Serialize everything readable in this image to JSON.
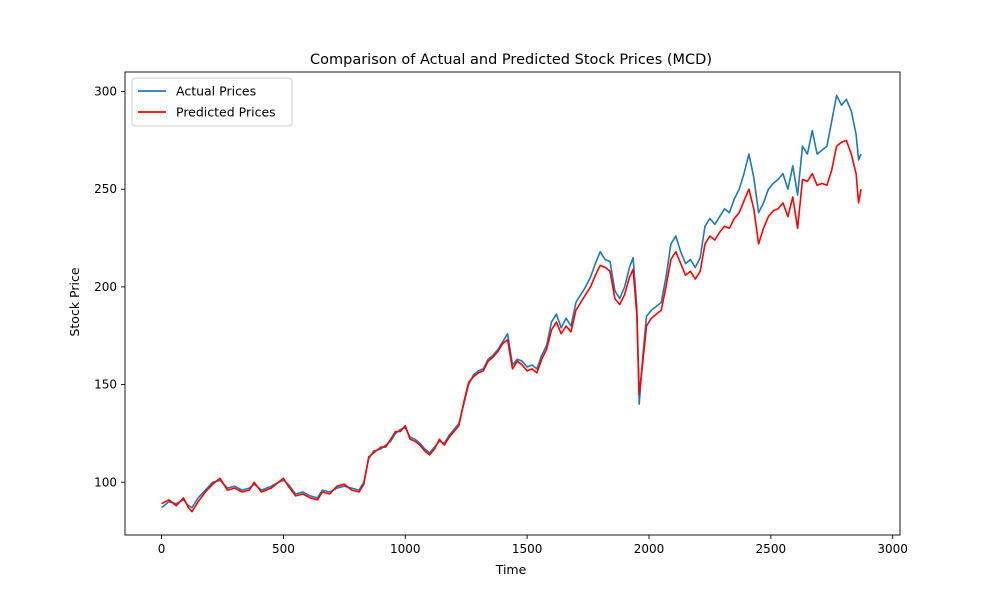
{
  "chart_data": {
    "type": "line",
    "title": "Comparison of Actual and Predicted Stock Prices (MCD)",
    "xlabel": "Time",
    "ylabel": "Stock Price",
    "xlim": [
      -150,
      3030
    ],
    "ylim": [
      73,
      310
    ],
    "xticks": [
      0,
      500,
      1000,
      1500,
      2000,
      2500,
      3000
    ],
    "yticks": [
      100,
      150,
      200,
      250,
      300
    ],
    "grid": false,
    "legend_position": "top-left",
    "series": [
      {
        "name": "Actual Prices",
        "color": "#1f77b4",
        "points": [
          [
            0,
            87
          ],
          [
            30,
            90
          ],
          [
            60,
            89
          ],
          [
            90,
            91
          ],
          [
            110,
            88
          ],
          [
            125,
            87
          ],
          [
            150,
            92
          ],
          [
            180,
            96
          ],
          [
            210,
            100
          ],
          [
            240,
            101
          ],
          [
            270,
            97
          ],
          [
            300,
            98
          ],
          [
            330,
            96
          ],
          [
            360,
            97
          ],
          [
            380,
            99
          ],
          [
            410,
            96
          ],
          [
            450,
            98
          ],
          [
            480,
            100
          ],
          [
            500,
            101
          ],
          [
            520,
            99
          ],
          [
            550,
            94
          ],
          [
            580,
            95
          ],
          [
            610,
            93
          ],
          [
            640,
            92
          ],
          [
            660,
            96
          ],
          [
            690,
            95
          ],
          [
            720,
            97
          ],
          [
            750,
            98
          ],
          [
            780,
            97
          ],
          [
            810,
            96
          ],
          [
            830,
            100
          ],
          [
            850,
            112
          ],
          [
            870,
            116
          ],
          [
            900,
            117
          ],
          [
            920,
            119
          ],
          [
            940,
            121
          ],
          [
            960,
            125
          ],
          [
            980,
            127
          ],
          [
            1000,
            128
          ],
          [
            1020,
            123
          ],
          [
            1040,
            122
          ],
          [
            1060,
            120
          ],
          [
            1080,
            117
          ],
          [
            1100,
            115
          ],
          [
            1120,
            118
          ],
          [
            1140,
            121
          ],
          [
            1160,
            120
          ],
          [
            1180,
            124
          ],
          [
            1200,
            127
          ],
          [
            1220,
            130
          ],
          [
            1240,
            140
          ],
          [
            1260,
            150
          ],
          [
            1280,
            155
          ],
          [
            1300,
            157
          ],
          [
            1320,
            158
          ],
          [
            1340,
            163
          ],
          [
            1360,
            165
          ],
          [
            1380,
            168
          ],
          [
            1400,
            172
          ],
          [
            1420,
            176
          ],
          [
            1440,
            160
          ],
          [
            1460,
            163
          ],
          [
            1480,
            162
          ],
          [
            1500,
            159
          ],
          [
            1520,
            160
          ],
          [
            1540,
            158
          ],
          [
            1560,
            165
          ],
          [
            1580,
            170
          ],
          [
            1600,
            182
          ],
          [
            1620,
            186
          ],
          [
            1640,
            179
          ],
          [
            1660,
            184
          ],
          [
            1680,
            180
          ],
          [
            1700,
            192
          ],
          [
            1720,
            196
          ],
          [
            1740,
            200
          ],
          [
            1760,
            205
          ],
          [
            1780,
            212
          ],
          [
            1800,
            218
          ],
          [
            1820,
            214
          ],
          [
            1840,
            213
          ],
          [
            1860,
            198
          ],
          [
            1880,
            194
          ],
          [
            1900,
            200
          ],
          [
            1920,
            210
          ],
          [
            1935,
            215
          ],
          [
            1950,
            190
          ],
          [
            1960,
            140
          ],
          [
            1975,
            165
          ],
          [
            1990,
            185
          ],
          [
            2010,
            188
          ],
          [
            2030,
            190
          ],
          [
            2050,
            192
          ],
          [
            2070,
            205
          ],
          [
            2090,
            222
          ],
          [
            2110,
            226
          ],
          [
            2130,
            218
          ],
          [
            2150,
            212
          ],
          [
            2170,
            214
          ],
          [
            2190,
            210
          ],
          [
            2210,
            215
          ],
          [
            2230,
            231
          ],
          [
            2250,
            235
          ],
          [
            2270,
            232
          ],
          [
            2290,
            236
          ],
          [
            2310,
            240
          ],
          [
            2330,
            238
          ],
          [
            2350,
            245
          ],
          [
            2370,
            250
          ],
          [
            2390,
            258
          ],
          [
            2410,
            268
          ],
          [
            2430,
            256
          ],
          [
            2450,
            238
          ],
          [
            2470,
            243
          ],
          [
            2490,
            250
          ],
          [
            2510,
            253
          ],
          [
            2530,
            255
          ],
          [
            2550,
            258
          ],
          [
            2570,
            250
          ],
          [
            2590,
            262
          ],
          [
            2610,
            247
          ],
          [
            2630,
            272
          ],
          [
            2650,
            268
          ],
          [
            2670,
            280
          ],
          [
            2690,
            268
          ],
          [
            2710,
            270
          ],
          [
            2730,
            272
          ],
          [
            2750,
            285
          ],
          [
            2770,
            298
          ],
          [
            2790,
            293
          ],
          [
            2810,
            296
          ],
          [
            2830,
            290
          ],
          [
            2850,
            278
          ],
          [
            2860,
            265
          ],
          [
            2870,
            268
          ]
        ]
      },
      {
        "name": "Predicted Prices",
        "color": "#ff0000",
        "points": [
          [
            0,
            89
          ],
          [
            30,
            91
          ],
          [
            60,
            88
          ],
          [
            90,
            92
          ],
          [
            110,
            87
          ],
          [
            125,
            85
          ],
          [
            150,
            90
          ],
          [
            180,
            95
          ],
          [
            210,
            99
          ],
          [
            240,
            102
          ],
          [
            270,
            96
          ],
          [
            300,
            97
          ],
          [
            330,
            95
          ],
          [
            360,
            96
          ],
          [
            380,
            100
          ],
          [
            410,
            95
          ],
          [
            450,
            97
          ],
          [
            480,
            100
          ],
          [
            500,
            102
          ],
          [
            520,
            98
          ],
          [
            550,
            93
          ],
          [
            580,
            94
          ],
          [
            610,
            92
          ],
          [
            640,
            91
          ],
          [
            660,
            95
          ],
          [
            690,
            94
          ],
          [
            720,
            98
          ],
          [
            750,
            99
          ],
          [
            780,
            96
          ],
          [
            810,
            95
          ],
          [
            830,
            99
          ],
          [
            850,
            113
          ],
          [
            870,
            115
          ],
          [
            900,
            118
          ],
          [
            920,
            118
          ],
          [
            940,
            122
          ],
          [
            960,
            126
          ],
          [
            980,
            126
          ],
          [
            1000,
            129
          ],
          [
            1020,
            122
          ],
          [
            1040,
            121
          ],
          [
            1060,
            119
          ],
          [
            1080,
            116
          ],
          [
            1100,
            114
          ],
          [
            1120,
            117
          ],
          [
            1140,
            122
          ],
          [
            1160,
            119
          ],
          [
            1180,
            123
          ],
          [
            1200,
            126
          ],
          [
            1220,
            129
          ],
          [
            1240,
            141
          ],
          [
            1260,
            151
          ],
          [
            1280,
            154
          ],
          [
            1300,
            156
          ],
          [
            1320,
            157
          ],
          [
            1340,
            162
          ],
          [
            1360,
            164
          ],
          [
            1380,
            167
          ],
          [
            1400,
            171
          ],
          [
            1420,
            173
          ],
          [
            1440,
            158
          ],
          [
            1460,
            162
          ],
          [
            1480,
            160
          ],
          [
            1500,
            157
          ],
          [
            1520,
            158
          ],
          [
            1540,
            156
          ],
          [
            1560,
            163
          ],
          [
            1580,
            168
          ],
          [
            1600,
            178
          ],
          [
            1620,
            182
          ],
          [
            1640,
            176
          ],
          [
            1660,
            180
          ],
          [
            1680,
            177
          ],
          [
            1700,
            188
          ],
          [
            1720,
            192
          ],
          [
            1740,
            196
          ],
          [
            1760,
            200
          ],
          [
            1780,
            206
          ],
          [
            1800,
            211
          ],
          [
            1820,
            210
          ],
          [
            1840,
            208
          ],
          [
            1860,
            194
          ],
          [
            1880,
            191
          ],
          [
            1900,
            196
          ],
          [
            1920,
            205
          ],
          [
            1935,
            209
          ],
          [
            1950,
            186
          ],
          [
            1960,
            145
          ],
          [
            1975,
            162
          ],
          [
            1990,
            180
          ],
          [
            2010,
            184
          ],
          [
            2030,
            186
          ],
          [
            2050,
            188
          ],
          [
            2070,
            200
          ],
          [
            2090,
            214
          ],
          [
            2110,
            218
          ],
          [
            2130,
            212
          ],
          [
            2150,
            206
          ],
          [
            2170,
            208
          ],
          [
            2190,
            204
          ],
          [
            2210,
            208
          ],
          [
            2230,
            222
          ],
          [
            2250,
            226
          ],
          [
            2270,
            224
          ],
          [
            2290,
            228
          ],
          [
            2310,
            231
          ],
          [
            2330,
            230
          ],
          [
            2350,
            235
          ],
          [
            2370,
            238
          ],
          [
            2390,
            244
          ],
          [
            2410,
            250
          ],
          [
            2430,
            240
          ],
          [
            2450,
            222
          ],
          [
            2470,
            230
          ],
          [
            2490,
            236
          ],
          [
            2510,
            239
          ],
          [
            2530,
            240
          ],
          [
            2550,
            243
          ],
          [
            2570,
            236
          ],
          [
            2590,
            246
          ],
          [
            2610,
            230
          ],
          [
            2630,
            255
          ],
          [
            2650,
            254
          ],
          [
            2670,
            258
          ],
          [
            2690,
            252
          ],
          [
            2710,
            253
          ],
          [
            2730,
            252
          ],
          [
            2750,
            260
          ],
          [
            2770,
            272
          ],
          [
            2790,
            274
          ],
          [
            2810,
            275
          ],
          [
            2830,
            268
          ],
          [
            2850,
            258
          ],
          [
            2860,
            243
          ],
          [
            2870,
            250
          ]
        ]
      }
    ]
  }
}
